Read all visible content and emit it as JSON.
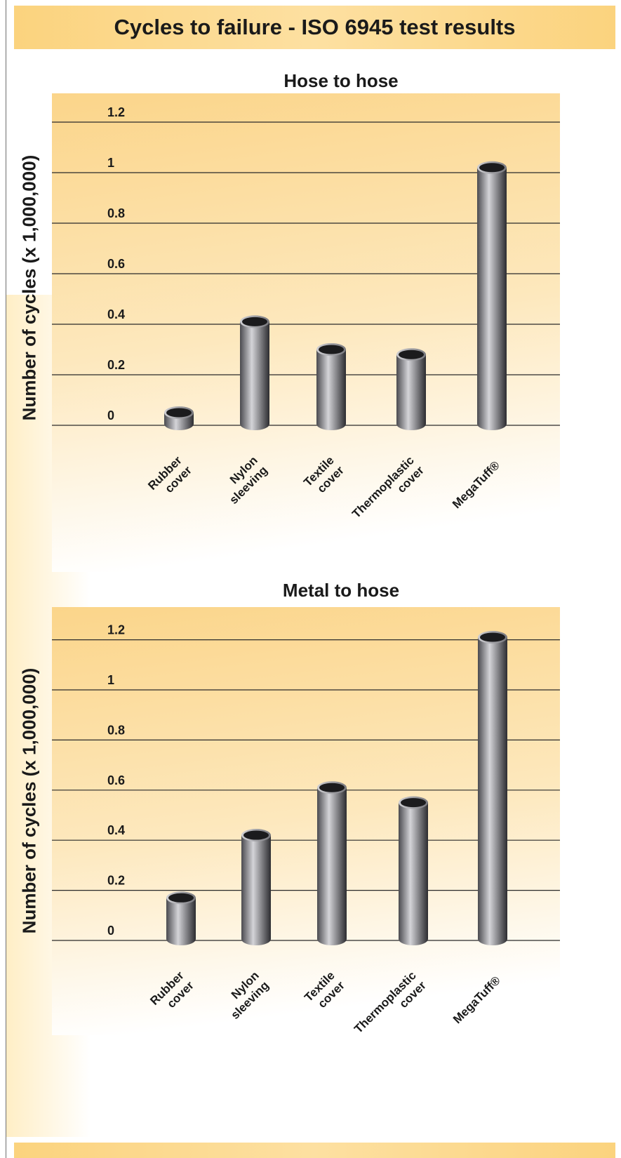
{
  "page": {
    "title": "Cycles to failure - ISO 6945 test results"
  },
  "colors": {
    "band": "#fbd37e",
    "plot_top": "#fbd58a",
    "plot_bottom": "#ffffff",
    "bar_light": "#d4d4d8",
    "bar_dark": "#2c2c30",
    "bar_cap": "#1b1b1d",
    "gridline": "#2a2a2a"
  },
  "chart_data": [
    {
      "type": "bar",
      "title": "Hose to hose",
      "ylabel": "Number of cycles (x 1,000,000)",
      "categories": [
        [
          "Rubber",
          "cover"
        ],
        [
          "Nylon",
          "sleeving"
        ],
        [
          "Textile",
          "cover"
        ],
        [
          "Thermoplastic",
          "cover"
        ],
        [
          "MegaTuff®"
        ]
      ],
      "values": [
        0.05,
        0.41,
        0.3,
        0.28,
        1.02
      ],
      "yticks": [
        "0",
        "0.2",
        "0.4",
        "0.6",
        "0.8",
        "1",
        "1.2"
      ],
      "ylim": [
        0,
        1.2
      ],
      "grid": true
    },
    {
      "type": "bar",
      "title": "Metal to hose",
      "ylabel": "Number of cycles (x 1,000,000)",
      "categories": [
        [
          "Rubber",
          "cover"
        ],
        [
          "Nylon",
          "sleeving"
        ],
        [
          "Textile",
          "cover"
        ],
        [
          "Thermoplastic",
          "cover"
        ],
        [
          "MegaTuff®"
        ]
      ],
      "values": [
        0.17,
        0.42,
        0.61,
        0.55,
        1.21
      ],
      "yticks": [
        "0",
        "0.2",
        "0.4",
        "0.6",
        "0.8",
        "1",
        "1.2"
      ],
      "ylim": [
        0,
        1.2
      ],
      "grid": true
    }
  ]
}
